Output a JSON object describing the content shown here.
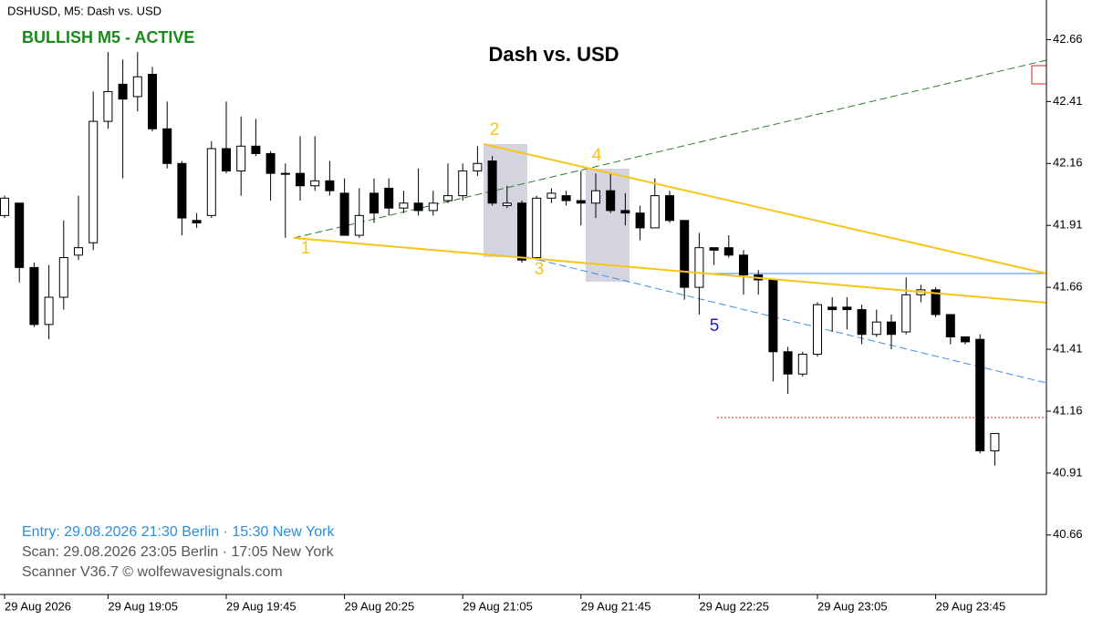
{
  "chart_data": {
    "type": "candlestick",
    "header": "DSHUSD, M5:  Dash vs. USD",
    "title": "Dash vs. USD",
    "status": "BULLISH M5 - ACTIVE",
    "annotations": [
      "1",
      "2",
      "3",
      "4",
      "5"
    ],
    "info": [
      "Entry: 29.08.2026  21:30 Berlin · 15:30 New York",
      "Scan:  29.08.2026  23:05 Berlin · 17:05 New York",
      "Scanner V36.7  © wolfewavesignals.com"
    ],
    "categories": [
      "29 Aug 2026",
      null,
      null,
      null,
      null,
      null,
      null,
      "29 Aug 19:05",
      null,
      null,
      null,
      null,
      null,
      null,
      null,
      "29 Aug 19:45",
      null,
      null,
      null,
      null,
      null,
      null,
      null,
      "29 Aug 20:25",
      null,
      null,
      null,
      null,
      null,
      null,
      null,
      "29 Aug 21:05",
      null,
      null,
      null,
      null,
      null,
      null,
      null,
      "29 Aug 21:45",
      null,
      null,
      null,
      null,
      null,
      null,
      null,
      "29 Aug 22:25",
      null,
      null,
      null,
      null,
      null,
      null,
      null,
      "29 Aug 23:05",
      null,
      null,
      null,
      null,
      null,
      null,
      null,
      "29 Aug 23:45",
      null,
      null,
      null,
      null
    ],
    "open": [
      41.95,
      42.0,
      41.74,
      41.51,
      41.62,
      41.79,
      41.84,
      42.33,
      42.48,
      42.43,
      42.52,
      42.3,
      42.16,
      41.93,
      41.95,
      42.22,
      42.13,
      42.23,
      42.2,
      42.12,
      42.12,
      42.07,
      42.09,
      42.04,
      41.87,
      42.04,
      42.06,
      41.98,
      42.0,
      41.97,
      42.01,
      42.03,
      42.13,
      42.17,
      41.99,
      42.0,
      41.78,
      42.02,
      42.03,
      42.01,
      42.0,
      42.05,
      41.97,
      41.96,
      41.9,
      42.03,
      41.93,
      41.66,
      41.82,
      41.82,
      41.79,
      41.71,
      41.69,
      41.4,
      41.31,
      41.39,
      41.58,
      41.58,
      41.57,
      41.47,
      41.52,
      41.48,
      41.63,
      41.65,
      41.55,
      41.46,
      41.45,
      41.0
    ],
    "high": [
      42.03,
      42.0,
      41.76,
      41.75,
      41.93,
      42.03,
      42.45,
      42.61,
      42.58,
      42.61,
      42.55,
      42.41,
      42.17,
      41.96,
      42.25,
      42.41,
      42.35,
      42.34,
      42.21,
      42.16,
      42.27,
      42.27,
      42.17,
      42.1,
      42.06,
      42.1,
      42.1,
      42.05,
      42.14,
      42.05,
      42.16,
      42.16,
      42.23,
      42.19,
      42.07,
      42.01,
      42.03,
      42.06,
      42.05,
      42.13,
      42.12,
      42.12,
      42.04,
      41.99,
      42.1,
      42.05,
      41.93,
      41.88,
      41.82,
      41.87,
      41.81,
      41.73,
      41.69,
      41.42,
      41.4,
      41.6,
      41.62,
      41.62,
      41.59,
      41.57,
      41.55,
      41.7,
      41.67,
      41.66,
      41.55,
      41.46,
      41.47,
      41.07
    ],
    "low": [
      41.94,
      41.68,
      41.5,
      41.45,
      41.57,
      41.77,
      41.81,
      42.3,
      42.1,
      42.37,
      42.29,
      42.14,
      41.87,
      41.9,
      41.94,
      42.12,
      42.03,
      42.19,
      42.01,
      41.86,
      42.01,
      42.05,
      42.03,
      41.87,
      41.86,
      41.92,
      41.95,
      41.96,
      41.95,
      41.95,
      42.0,
      42.01,
      42.11,
      41.99,
      41.98,
      41.76,
      41.77,
      42.0,
      41.99,
      41.91,
      41.94,
      41.96,
      41.91,
      41.85,
      41.9,
      41.92,
      41.61,
      41.55,
      41.75,
      41.78,
      41.63,
      41.63,
      41.28,
      41.23,
      41.3,
      41.38,
      41.48,
      41.49,
      41.43,
      41.46,
      41.41,
      41.47,
      41.6,
      41.54,
      41.43,
      41.43,
      40.99,
      40.94
    ],
    "close": [
      42.02,
      41.74,
      41.51,
      41.62,
      41.78,
      41.82,
      42.33,
      42.45,
      42.42,
      42.51,
      42.3,
      42.16,
      41.94,
      41.92,
      42.22,
      42.13,
      42.23,
      42.2,
      42.12,
      42.12,
      42.07,
      42.09,
      42.05,
      41.87,
      41.95,
      41.96,
      41.98,
      42.0,
      41.97,
      42.0,
      42.03,
      42.13,
      42.16,
      42.0,
      42.0,
      41.77,
      42.02,
      42.04,
      42.01,
      42.0,
      42.05,
      41.97,
      41.96,
      41.9,
      42.03,
      41.93,
      41.66,
      41.82,
      41.81,
      41.79,
      41.71,
      41.69,
      41.4,
      41.31,
      41.39,
      41.59,
      41.57,
      41.57,
      41.47,
      41.52,
      41.47,
      41.63,
      41.65,
      41.55,
      41.46,
      41.44,
      41.0,
      41.07
    ],
    "up_color": "#ffffff",
    "down_color": "#000000",
    "wick_color": "#000000",
    "ylim": [
      40.42,
      42.82
    ],
    "yticks": [
      40.66,
      40.91,
      41.16,
      41.41,
      41.66,
      41.91,
      42.16,
      42.41,
      42.66
    ]
  }
}
